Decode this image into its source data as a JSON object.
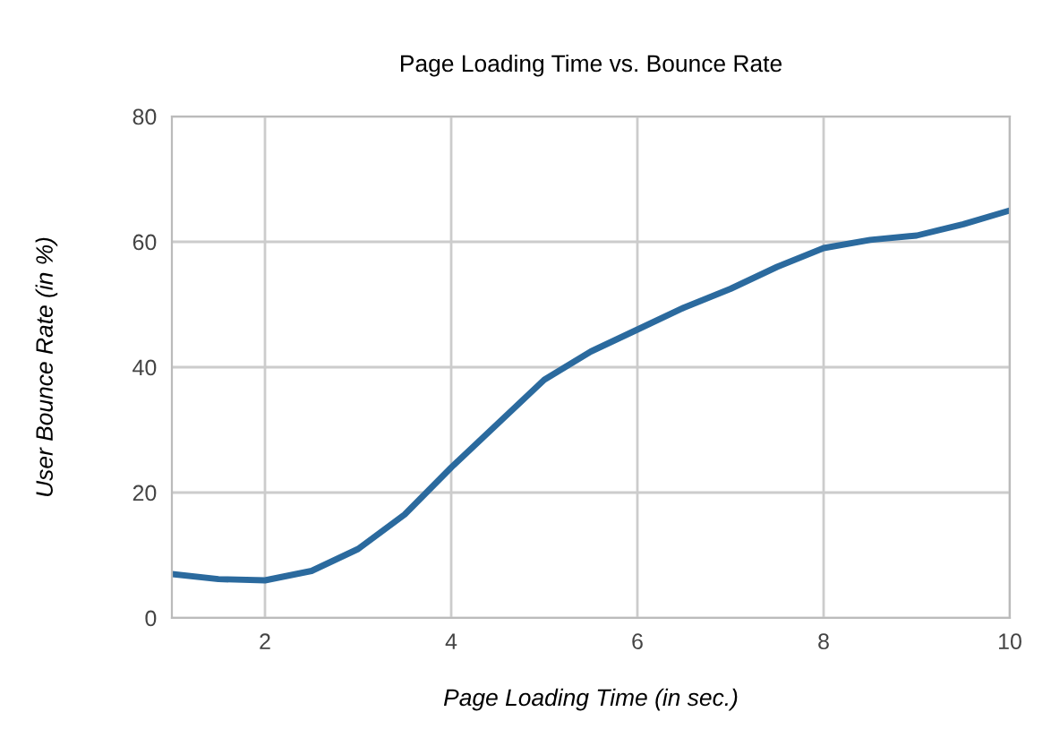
{
  "chart_data": {
    "type": "line",
    "title": "Page Loading Time vs. Bounce Rate",
    "xlabel": "Page Loading Time (in sec.)",
    "ylabel": "User Bounce Rate (in %)",
    "x": [
      1,
      1.5,
      2,
      2.5,
      3,
      3.5,
      4,
      4.5,
      5,
      5.5,
      6,
      6.5,
      7,
      7.5,
      8,
      8.5,
      9,
      9.5,
      10
    ],
    "series": [
      {
        "color": "#2b6a9e",
        "values": [
          7,
          6.2,
          6,
          7.5,
          11,
          16.5,
          24,
          31,
          38,
          42.5,
          46,
          49.5,
          52.5,
          56,
          59,
          60.3,
          61,
          62.8,
          65
        ]
      }
    ],
    "xlim": [
      1,
      10
    ],
    "xticks": [
      2,
      4,
      6,
      8,
      10
    ],
    "ylim": [
      0,
      80
    ],
    "yticks": [
      0,
      20,
      40,
      60,
      80
    ],
    "grid": true,
    "legend": false,
    "marker": "none",
    "line_style": "solid"
  }
}
